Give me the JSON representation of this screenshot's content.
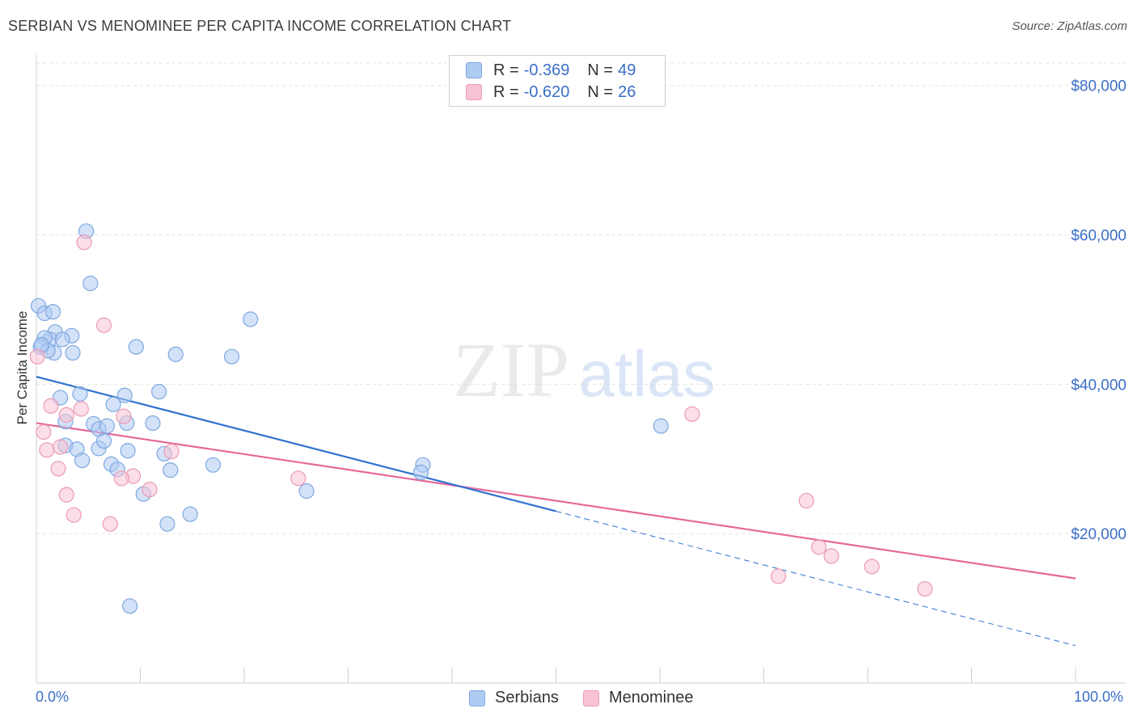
{
  "title": "SERBIAN VS MENOMINEE PER CAPITA INCOME CORRELATION CHART",
  "source": "Source: ZipAtlas.com",
  "watermark": {
    "zip": "ZIP",
    "atlas": "atlas"
  },
  "legend": {
    "rows": [
      {
        "r_label": "R = ",
        "r_value": "-0.369",
        "n_label": "N = ",
        "n_value": "49"
      },
      {
        "r_label": "R = ",
        "r_value": "-0.620",
        "n_label": "N = ",
        "n_value": "26"
      }
    ]
  },
  "colors": {
    "serbians_fill": "#aecbf2",
    "serbians_stroke": "#7ea7e0",
    "serbians_line": "#2f72d0",
    "menominee_fill": "#f7c3d4",
    "menominee_stroke": "#ec9ab5",
    "menominee_line": "#e5679a",
    "axis_text": "#3b6fc8"
  },
  "chart_data": {
    "type": "scatter",
    "title": "SERBIAN VS MENOMINEE PER CAPITA INCOME CORRELATION CHART",
    "xlabel": "",
    "ylabel": "Per Capita Income",
    "xlim": [
      0,
      100
    ],
    "ylim": [
      0,
      83000
    ],
    "x_tick_labels": [
      "0.0%",
      "100.0%"
    ],
    "y_ticks": [
      20000,
      40000,
      60000,
      80000
    ],
    "y_tick_labels": [
      "$20,000",
      "$40,000",
      "$60,000",
      "$80,000"
    ],
    "grid": true,
    "legend_position": "top-center",
    "series": [
      {
        "name": "Serbians",
        "r": -0.369,
        "n": 49,
        "trend": {
          "x0": 0,
          "y0": 41000,
          "x1": 50,
          "y1": 23000,
          "dash_x1": 100,
          "dash_y1": 5000
        },
        "points": [
          [
            0.2,
            50500
          ],
          [
            0.8,
            49500
          ],
          [
            1.6,
            49700
          ],
          [
            1.8,
            47000
          ],
          [
            3.4,
            46500
          ],
          [
            1.3,
            46000
          ],
          [
            2.5,
            46000
          ],
          [
            0.8,
            46200
          ],
          [
            0.4,
            45000
          ],
          [
            1.7,
            44200
          ],
          [
            3.5,
            44200
          ],
          [
            4.8,
            60500
          ],
          [
            5.2,
            53500
          ],
          [
            20.6,
            48700
          ],
          [
            9.6,
            45000
          ],
          [
            13.4,
            44000
          ],
          [
            18.8,
            43700
          ],
          [
            2.3,
            38200
          ],
          [
            4.2,
            38700
          ],
          [
            8.5,
            38500
          ],
          [
            11.8,
            39000
          ],
          [
            7.4,
            37300
          ],
          [
            2.8,
            35000
          ],
          [
            5.5,
            34700
          ],
          [
            6.0,
            34000
          ],
          [
            6.8,
            34400
          ],
          [
            8.7,
            34800
          ],
          [
            11.2,
            34800
          ],
          [
            2.8,
            31800
          ],
          [
            3.9,
            31300
          ],
          [
            6.0,
            31400
          ],
          [
            6.5,
            32400
          ],
          [
            8.8,
            31100
          ],
          [
            12.3,
            30700
          ],
          [
            4.4,
            29800
          ],
          [
            7.2,
            29300
          ],
          [
            17.0,
            29200
          ],
          [
            7.8,
            28600
          ],
          [
            12.9,
            28500
          ],
          [
            37.2,
            29200
          ],
          [
            37.0,
            28200
          ],
          [
            26.0,
            25700
          ],
          [
            10.3,
            25300
          ],
          [
            12.6,
            21300
          ],
          [
            14.8,
            22600
          ],
          [
            60.1,
            34400
          ],
          [
            9.0,
            10300
          ],
          [
            1.1,
            44500
          ],
          [
            0.5,
            45300
          ]
        ]
      },
      {
        "name": "Menominee",
        "r": -0.62,
        "n": 26,
        "trend": {
          "x0": 0,
          "y0": 34800,
          "x1": 100,
          "y1": 14000
        },
        "points": [
          [
            4.6,
            59000
          ],
          [
            6.5,
            47900
          ],
          [
            0.1,
            43700
          ],
          [
            1.4,
            37100
          ],
          [
            4.3,
            36700
          ],
          [
            2.9,
            35900
          ],
          [
            8.4,
            35700
          ],
          [
            0.7,
            33600
          ],
          [
            1.0,
            31200
          ],
          [
            2.3,
            31600
          ],
          [
            13.0,
            31000
          ],
          [
            2.1,
            28700
          ],
          [
            9.3,
            27700
          ],
          [
            8.2,
            27400
          ],
          [
            25.2,
            27400
          ],
          [
            10.9,
            25900
          ],
          [
            2.9,
            25200
          ],
          [
            3.6,
            22500
          ],
          [
            7.1,
            21300
          ],
          [
            63.1,
            36000
          ],
          [
            74.1,
            24400
          ],
          [
            75.3,
            18200
          ],
          [
            76.5,
            17000
          ],
          [
            80.4,
            15600
          ],
          [
            71.4,
            14300
          ],
          [
            85.5,
            12600
          ]
        ]
      }
    ]
  }
}
